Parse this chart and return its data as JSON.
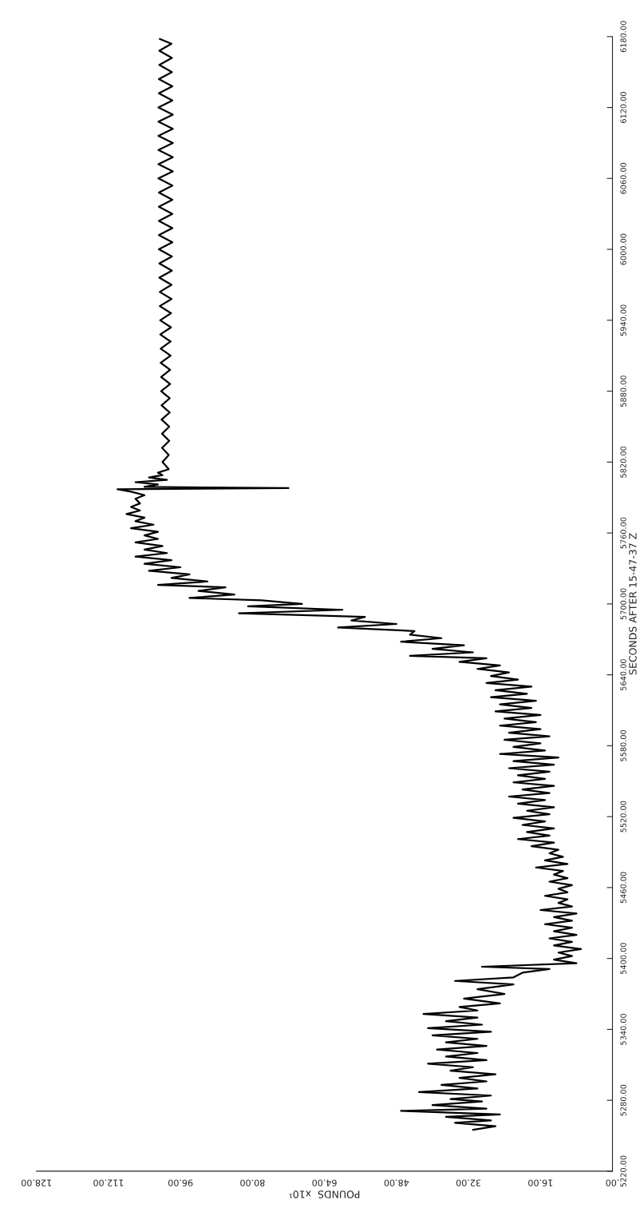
{
  "chart_data": {
    "type": "line",
    "xlabel": "POUNDS  x10¹",
    "ylabel": "SECONDS AFTER 15-47-37 Z",
    "xlim": [
      128,
      0
    ],
    "xticks": [
      {
        "value": 0,
        "label": ".00"
      },
      {
        "value": 16,
        "label": "16.00"
      },
      {
        "value": 32,
        "label": "32.00"
      },
      {
        "value": 48,
        "label": "48.00"
      },
      {
        "value": 64,
        "label": "64.00"
      },
      {
        "value": 80,
        "label": "80.00"
      },
      {
        "value": 96,
        "label": "96.00"
      },
      {
        "value": 112,
        "label": "112.00"
      },
      {
        "value": 128,
        "label": "128.00"
      }
    ],
    "ylim": [
      5220,
      6180
    ],
    "yticks": [
      {
        "value": 5220,
        "label": "5220.00"
      },
      {
        "value": 5280,
        "label": "5280.00"
      },
      {
        "value": 5340,
        "label": "5340.00"
      },
      {
        "value": 5400,
        "label": "5400.00"
      },
      {
        "value": 5460,
        "label": "5460.00"
      },
      {
        "value": 5520,
        "label": "5520.00"
      },
      {
        "value": 5580,
        "label": "5580.00"
      },
      {
        "value": 5640,
        "label": "5640.00"
      },
      {
        "value": 5700,
        "label": "5700.00"
      },
      {
        "value": 5760,
        "label": "5760.00"
      },
      {
        "value": 5820,
        "label": "5820.00"
      },
      {
        "value": 5880,
        "label": "5880.00"
      },
      {
        "value": 5940,
        "label": "5940.00"
      },
      {
        "value": 6000,
        "label": "6000.00"
      },
      {
        "value": 6060,
        "label": "6060.00"
      },
      {
        "value": 6120,
        "label": "6120.00"
      },
      {
        "value": 6180,
        "label": "6180.00"
      }
    ],
    "series": [
      {
        "color": "#000000",
        "values": [
          5255,
          5258,
          5261,
          5263,
          5266,
          5268,
          5271,
          5273,
          5276,
          5279,
          5281,
          5284,
          5287,
          5290,
          5293,
          5296,
          5299,
          5302,
          5305,
          5308,
          5311,
          5314,
          5317,
          5320,
          5323,
          5326,
          5329,
          5332,
          5335,
          5338,
          5341,
          5344,
          5347,
          5350,
          5353,
          5356,
          5359,
          5362,
          5366,
          5370,
          5374,
          5378,
          5381,
          5384,
          5388,
          5391,
          5393,
          5396,
          5399,
          5402,
          5405,
          5408,
          5411,
          5414,
          5417,
          5420,
          5423,
          5426,
          5429,
          5432,
          5435,
          5438,
          5441,
          5444,
          5447,
          5450,
          5453,
          5456,
          5459,
          5462,
          5465,
          5468,
          5471,
          5474,
          5477,
          5480,
          5483,
          5486,
          5489,
          5492,
          5495,
          5498,
          5501,
          5504,
          5507,
          5510,
          5513,
          5516,
          5519,
          5522,
          5525,
          5528,
          5531,
          5534,
          5537,
          5540,
          5543,
          5546,
          5549,
          5552,
          5555,
          5558,
          5561,
          5564,
          5567,
          5570,
          5573,
          5576,
          5579,
          5582,
          5585,
          5588,
          5591,
          5594,
          5597,
          5600,
          5603,
          5606,
          5609,
          5612,
          5615,
          5618,
          5621,
          5624,
          5627,
          5630,
          5633,
          5636,
          5639,
          5642,
          5645,
          5648,
          5651,
          5654,
          5656,
          5659,
          5662,
          5665,
          5668,
          5671,
          5674,
          5677,
          5680,
          5683,
          5686,
          5689,
          5692,
          5695,
          5698,
          5700,
          5703,
          5705,
          5708,
          5711,
          5714,
          5716,
          5719,
          5722,
          5725,
          5728,
          5731,
          5734,
          5737,
          5740,
          5743,
          5746,
          5749,
          5752,
          5755,
          5758,
          5761,
          5764,
          5767,
          5770,
          5773,
          5776,
          5779,
          5782,
          5785,
          5789,
          5792,
          5795,
          5797,
          5798,
          5799,
          5801,
          5803,
          5805,
          5807,
          5809,
          5811,
          5814,
          5820,
          5826,
          5832,
          5838,
          5844,
          5850,
          5856,
          5862,
          5868,
          5874,
          5880,
          5886,
          5892,
          5898,
          5904,
          5910,
          5916,
          5922,
          5928,
          5934,
          5940,
          5946,
          5952,
          5958,
          5964,
          5970,
          5976,
          5982,
          5988,
          5994,
          6000,
          6006,
          6012,
          6018,
          6024,
          6030,
          6036,
          6042,
          6048,
          6054,
          6060,
          6066,
          6072,
          6078,
          6084,
          6090,
          6096,
          6102,
          6108,
          6114,
          6120,
          6126,
          6132,
          6138,
          6144,
          6150,
          6156,
          6162,
          6168,
          6174,
          6178
        ],
        "x": [
          31,
          26,
          35,
          27,
          37,
          25,
          47,
          28,
          40,
          29,
          36,
          27,
          43,
          30,
          38,
          28,
          34,
          26,
          36,
          31,
          41,
          28,
          37,
          30,
          39,
          28,
          37,
          30,
          40,
          27,
          41,
          29,
          37,
          30,
          42,
          30,
          34,
          25,
          33,
          24,
          30,
          22,
          35,
          22,
          20,
          14,
          29,
          8,
          13,
          9,
          12,
          7,
          13,
          9,
          14,
          8,
          13,
          9,
          15,
          9,
          13,
          8,
          16,
          9,
          12,
          10,
          15,
          10,
          12,
          9,
          14,
          10,
          13,
          11,
          17,
          10,
          15,
          11,
          14,
          12,
          18,
          13,
          21,
          14,
          19,
          13,
          20,
          15,
          22,
          14,
          19,
          13,
          21,
          15,
          23,
          14,
          20,
          13,
          22,
          15,
          21,
          14,
          23,
          13,
          22,
          12,
          25,
          15,
          22,
          16,
          24,
          14,
          23,
          16,
          25,
          17,
          24,
          16,
          26,
          18,
          25,
          17,
          27,
          19,
          26,
          18,
          28,
          21,
          27,
          23,
          30,
          25,
          34,
          28,
          45,
          31,
          40,
          33,
          47,
          38,
          45,
          44,
          61,
          48,
          58,
          55,
          83,
          60,
          81,
          69,
          78,
          94,
          84,
          92,
          86,
          101,
          90,
          98,
          94,
          103,
          96,
          104,
          98,
          106,
          99,
          104,
          100,
          106,
          101,
          104,
          101,
          107,
          102,
          106,
          104,
          108,
          105,
          107,
          105,
          106,
          104,
          107,
          110,
          72,
          104,
          101,
          106,
          99,
          103,
          100,
          101,
          98.6,
          100.0,
          98.6,
          100.1,
          98.5,
          100.1,
          98.5,
          100.2,
          98.4,
          100.2,
          98.4,
          100.3,
          98.3,
          100.3,
          98.3,
          100.4,
          98.2,
          100.4,
          98.2,
          100.5,
          98.1,
          100.5,
          98.1,
          100.6,
          98.0,
          100.6,
          98.0,
          100.7,
          97.9,
          100.7,
          97.9,
          100.8,
          97.8,
          100.8,
          97.8,
          100.8,
          97.8,
          100.8,
          97.8,
          100.8,
          97.8,
          100.9,
          97.7,
          100.9,
          97.7,
          100.9,
          97.7,
          100.9,
          97.7,
          100.9,
          97.7,
          100.9,
          97.8,
          100.8,
          97.8,
          100.8,
          97.9,
          100.7,
          97.9,
          100.7,
          98.0,
          100.6
        ]
      }
    ]
  }
}
